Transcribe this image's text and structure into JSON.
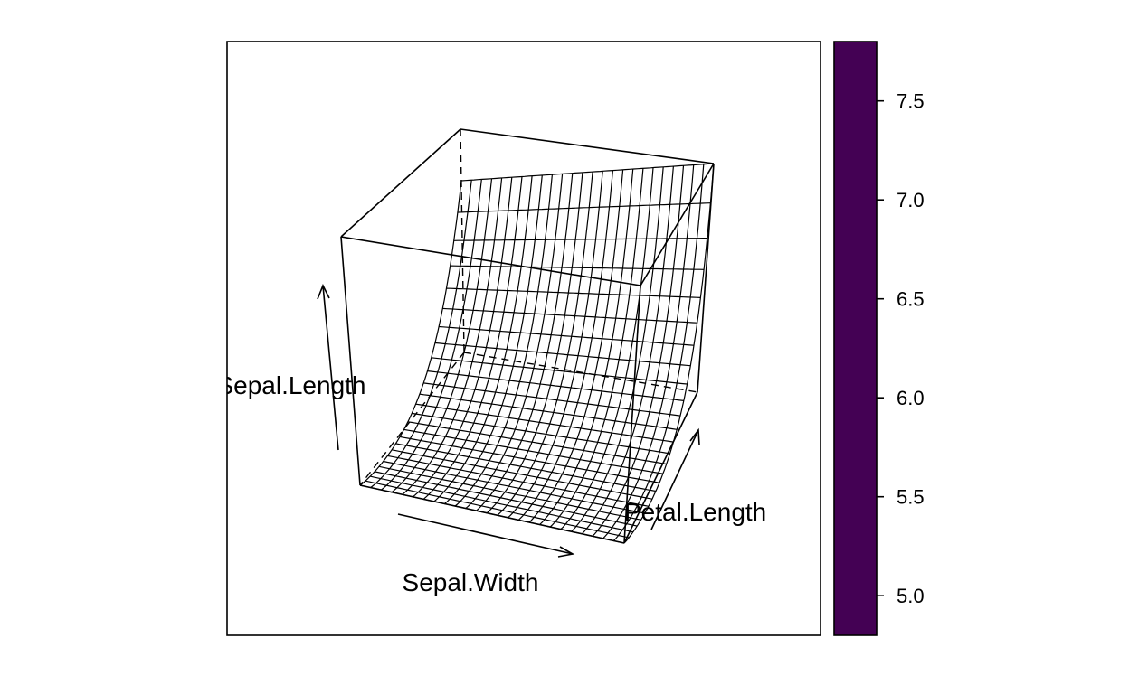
{
  "chart_data": {
    "type": "surface",
    "title": "",
    "x_axis": {
      "label": "Sepal.Width",
      "direction": "arrow",
      "tick_labels": false
    },
    "y_axis": {
      "label": "Petal.Length",
      "direction": "arrow",
      "tick_labels": false
    },
    "z_axis": {
      "label": "Sepal.Length",
      "direction": "arrow",
      "tick_labels": false
    },
    "colorbar": {
      "ticks": [
        "5.0",
        "5.5",
        "6.0",
        "6.5",
        "7.0",
        "7.5"
      ],
      "range": [
        4.8,
        7.8
      ],
      "fill": "#440154"
    },
    "surface": {
      "grid": 25,
      "z_min": 4.8,
      "z_max": 7.8,
      "shape": "exponential rise along Petal.Length, nearly flat along Sepal.Width",
      "corners": {
        "front_left_low": 4.8,
        "front_right_low": 4.8,
        "back_left_high": 7.6,
        "back_right_high": 7.8
      }
    },
    "colors": {
      "mesh": "#000000",
      "colorbar": "#440154"
    }
  }
}
